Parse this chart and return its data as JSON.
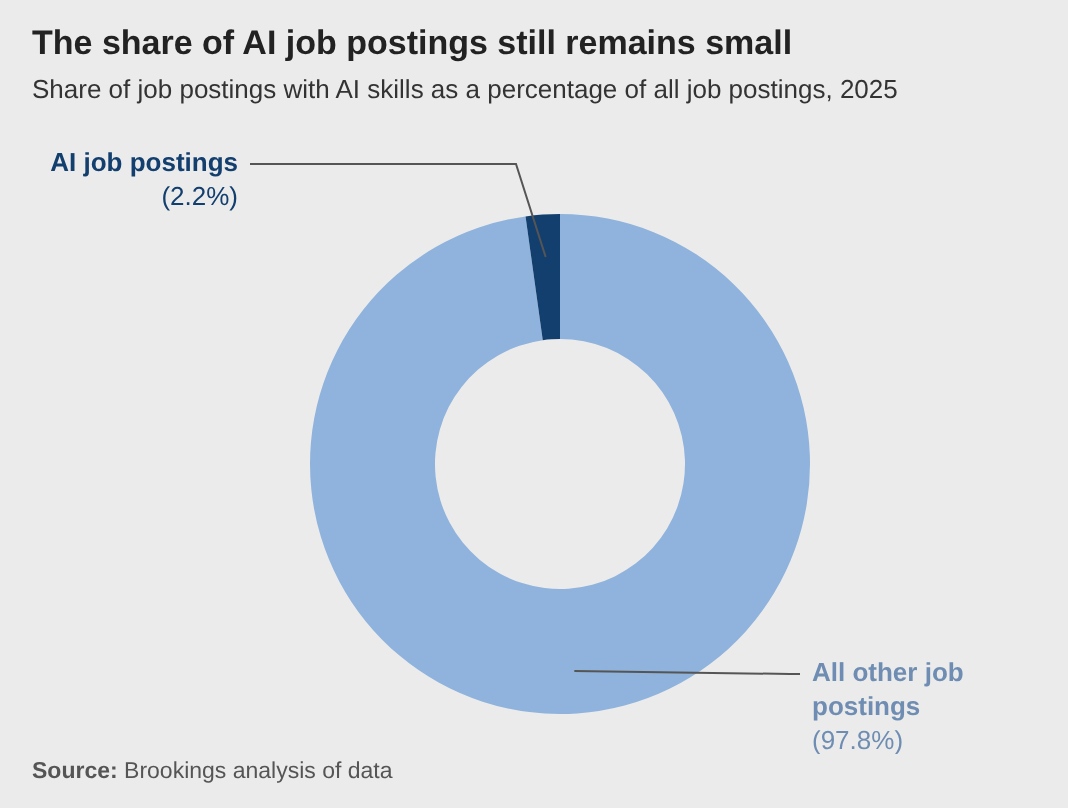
{
  "chart_data": {
    "type": "donut",
    "title": "The share of AI job postings still remains small",
    "subtitle": "Share of job postings with AI skills as a percentage of all job postings, 2025",
    "categories": [
      "All other job postings",
      "AI job postings"
    ],
    "values": [
      97.8,
      2.2
    ],
    "colors": [
      "#8fb3dc",
      "#123f6e"
    ],
    "value_labels": [
      "(97.8%)",
      "(2.2%)"
    ],
    "annotations": [
      "Source: Brookings analysis of data"
    ],
    "legend": false
  }
}
